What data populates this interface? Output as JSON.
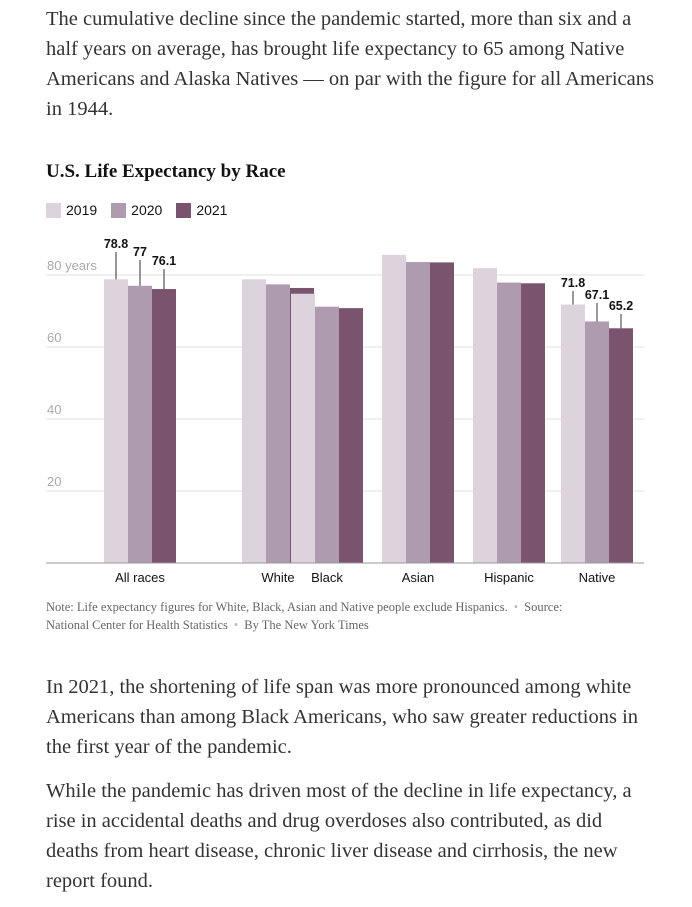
{
  "article": {
    "paragraph_1": "The cumulative decline since the pandemic started, more than six and a half years on average, has brought life expectancy to 65 among Native Americans and Alaska Natives — on par with the figure for all Americans in 1944.",
    "paragraph_2": "In 2021, the shortening of life span was more pronounced among white Americans than among Black Americans, who saw greater reductions in the first year of the pandemic.",
    "paragraph_3": "While the pandemic has driven most of the decline in life expectancy, a rise in accidental deaths and drug overdoses also contributed, as did deaths from heart disease, chronic liver disease and cirrhosis, the new report found."
  },
  "footer": {
    "note": "Note: Life expectancy figures for White, Black, Asian and Native people exclude Hispanics.",
    "source": "Source: National Center for Health Statistics",
    "byline": "By The New York Times"
  },
  "chart_data": {
    "type": "bar",
    "title": "U.S. Life Expectancy by Race",
    "categories": [
      "All races",
      "White",
      "Black",
      "Asian",
      "Hispanic",
      "Native"
    ],
    "series": [
      {
        "name": "2019",
        "color": "#dcd3dc",
        "values": [
          78.8,
          78.8,
          74.8,
          85.6,
          81.9,
          71.8
        ]
      },
      {
        "name": "2020",
        "color": "#ae9bb0",
        "values": [
          77.0,
          77.4,
          71.2,
          83.6,
          77.9,
          67.1
        ]
      },
      {
        "name": "2021",
        "color": "#7a536e",
        "values": [
          76.1,
          76.4,
          70.8,
          83.5,
          77.7,
          65.2
        ]
      }
    ],
    "labeled_points": [
      {
        "category": "All races",
        "series": "2019",
        "label": "78.8"
      },
      {
        "category": "All races",
        "series": "2020",
        "label": "77"
      },
      {
        "category": "All races",
        "series": "2021",
        "label": "76.1"
      },
      {
        "category": "Native",
        "series": "2019",
        "label": "71.8"
      },
      {
        "category": "Native",
        "series": "2020",
        "label": "67.1"
      },
      {
        "category": "Native",
        "series": "2021",
        "label": "65.2"
      }
    ],
    "y_ticks": [
      {
        "value": 20,
        "label": "20"
      },
      {
        "value": 40,
        "label": "40"
      },
      {
        "value": 60,
        "label": "60"
      },
      {
        "value": 80,
        "label": "80 years"
      }
    ],
    "ylim": [
      0,
      90
    ],
    "xlabel": "",
    "ylabel": "",
    "grid": true
  }
}
